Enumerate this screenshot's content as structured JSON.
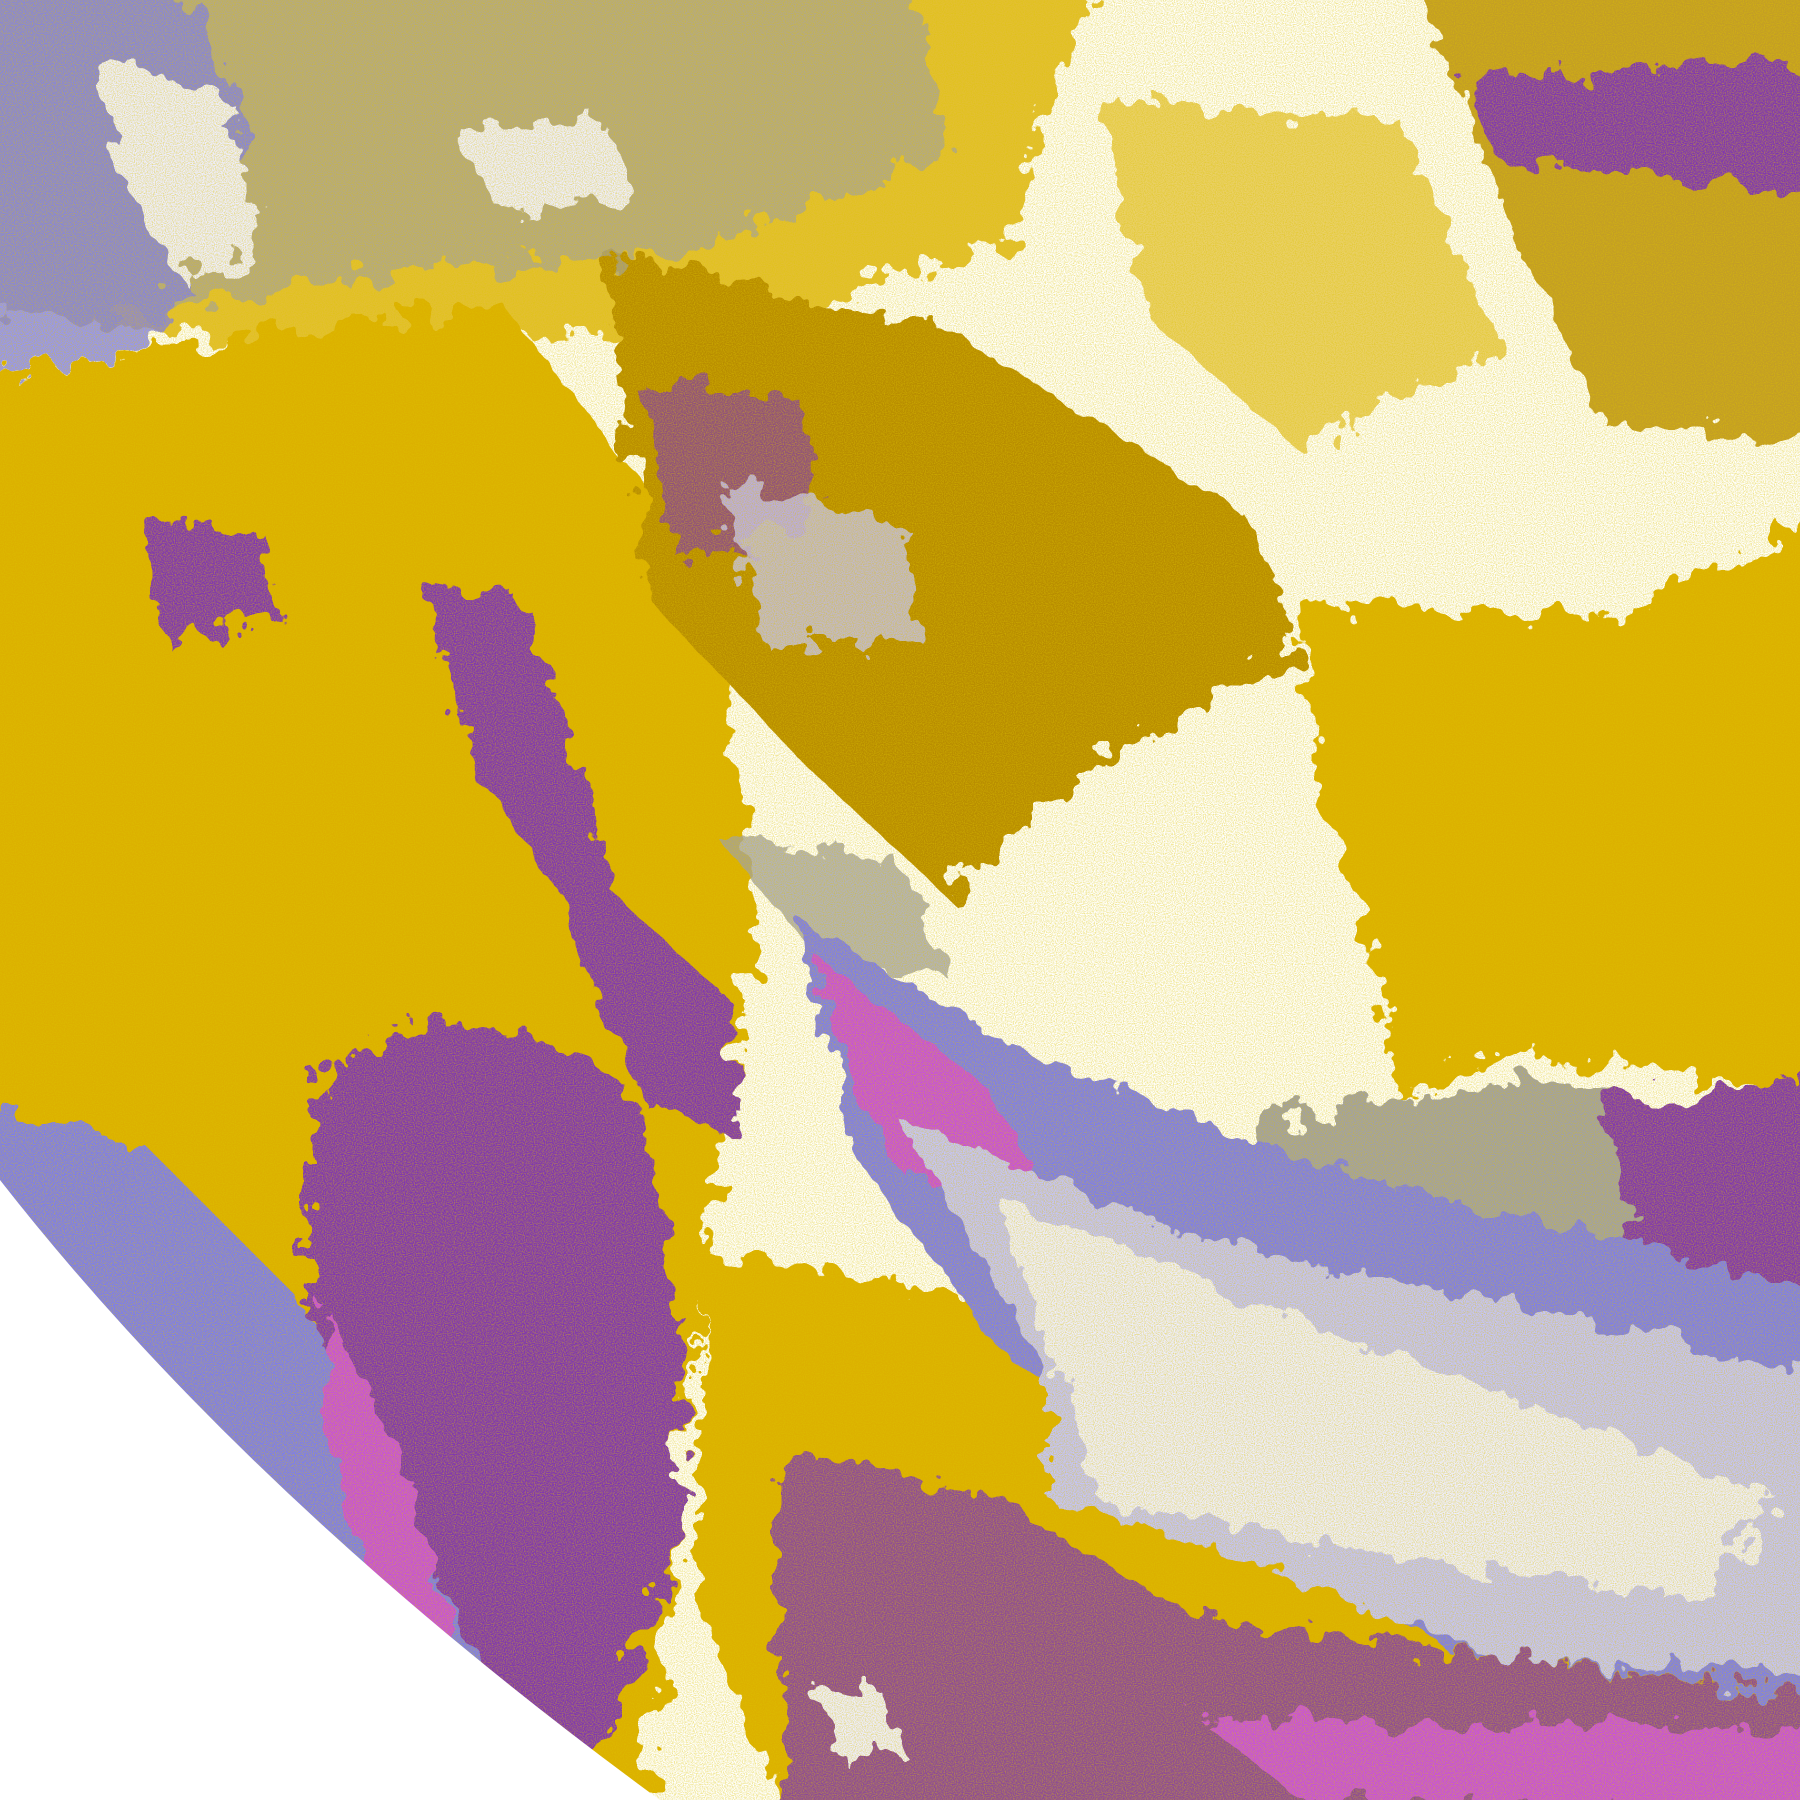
{
  "map": {
    "kind": "satellite-cloud-classification",
    "colors": {
      "space": "#ffffff",
      "clear": "#ffffff",
      "gold": "#dcb000",
      "dark_gold": "#b88c00",
      "purple": "#7e36b4",
      "magenta": "#c650e0",
      "violet": "#7c7cf0",
      "lavender": "#c4c4fa",
      "pale": "#eeeeff",
      "gray": "#a0a0a8"
    }
  }
}
